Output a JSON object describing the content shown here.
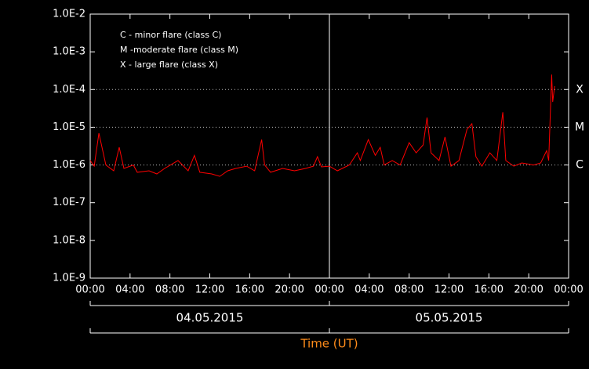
{
  "chart_data": {
    "type": "line",
    "x_label": "Time (UT)",
    "legend_notes": [
      "C - minor flare (class C)",
      "M -moderate flare (class M)",
      "X - large flare (class X)"
    ],
    "date_labels": [
      "04.05.2015",
      "05.05.2015"
    ],
    "day_boundary": 24,
    "flare_levels": [
      {
        "value": 0.0001,
        "label": "X"
      },
      {
        "value": 1e-05,
        "label": "M"
      },
      {
        "value": 1e-06,
        "label": "C"
      }
    ],
    "log_y": true,
    "xlim": [
      0,
      48
    ],
    "xticks": [
      {
        "value": 0,
        "label": "00:00"
      },
      {
        "value": 4,
        "label": "04:00"
      },
      {
        "value": 8,
        "label": "08:00"
      },
      {
        "value": 12,
        "label": "12:00"
      },
      {
        "value": 16,
        "label": "16:00"
      },
      {
        "value": 20,
        "label": "20:00"
      },
      {
        "value": 24,
        "label": "00:00"
      },
      {
        "value": 28,
        "label": "04:00"
      },
      {
        "value": 32,
        "label": "08:00"
      },
      {
        "value": 36,
        "label": "12:00"
      },
      {
        "value": 40,
        "label": "16:00"
      },
      {
        "value": 44,
        "label": "20:00"
      },
      {
        "value": 48,
        "label": "00:00"
      }
    ],
    "ylim": [
      1e-09,
      0.01
    ],
    "yticks": [
      {
        "value": 1e-09,
        "label": "1.0E-9"
      },
      {
        "value": 1e-08,
        "label": "1.0E-8"
      },
      {
        "value": 1e-07,
        "label": "1.0E-7"
      },
      {
        "value": 1e-06,
        "label": "1.0E-6"
      },
      {
        "value": 1e-05,
        "label": "1.0E-5"
      },
      {
        "value": 0.0001,
        "label": "1.0E-4"
      },
      {
        "value": 0.001,
        "label": "1.0E-3"
      },
      {
        "value": 0.01,
        "label": "1.0E-2"
      }
    ],
    "series": [
      {
        "color": "#ff0000",
        "x": [
          0,
          0.4,
          0.87,
          1.57,
          2.36,
          2.91,
          3.38,
          4.33,
          4.72,
          5.9,
          6.69,
          7.47,
          8.81,
          9.83,
          10.46,
          11.0,
          12.2,
          13.0,
          13.8,
          14.6,
          15.7,
          16.5,
          17.2,
          17.5,
          18.1,
          19.3,
          20.5,
          21.6,
          22.4,
          22.8,
          23.2,
          24.0,
          24.8,
          26.0,
          26.8,
          27.1,
          27.9,
          28.6,
          29.1,
          29.5,
          30.3,
          31.1,
          32.0,
          32.7,
          33.4,
          33.8,
          34.2,
          35.0,
          35.6,
          36.2,
          37.0,
          37.8,
          38.3,
          38.7,
          39.3,
          40.1,
          40.8,
          41.4,
          41.7,
          42.5,
          43.3,
          44.5,
          45.2,
          45.8,
          46.0,
          46.3,
          46.4,
          46.6
        ],
        "values": [
          1.31e-06,
          9.3e-07,
          6.97e-06,
          1e-06,
          7e-07,
          2.94e-06,
          8.1e-07,
          1e-06,
          6.4e-07,
          7e-07,
          5.8e-07,
          8.1e-07,
          1.31e-06,
          7e-07,
          1.8e-06,
          6.4e-07,
          5.8e-07,
          5e-07,
          7e-07,
          8.1e-07,
          9.3e-07,
          7e-07,
          4.7e-06,
          1e-06,
          6.4e-07,
          8.1e-07,
          7e-07,
          8.1e-07,
          9.3e-07,
          1.66e-06,
          8.9e-07,
          9.3e-07,
          7e-07,
          1e-06,
          2.1e-06,
          1.31e-06,
          4.7e-06,
          1.8e-06,
          2.94e-06,
          1e-06,
          1.31e-06,
          1e-06,
          3.9e-06,
          2.1e-06,
          3.4e-06,
          1.81e-05,
          2.1e-06,
          1.31e-06,
          5.5e-06,
          9.3e-07,
          1.31e-06,
          8.8e-06,
          1.24e-05,
          1.66e-06,
          9.3e-07,
          2.1e-06,
          1.31e-06,
          2.5e-05,
          1.31e-06,
          9.3e-07,
          1.13e-06,
          1e-06,
          1.13e-06,
          2.4e-06,
          1.31e-06,
          0.00025,
          4.7e-05,
          0.000123
        ]
      }
    ]
  }
}
